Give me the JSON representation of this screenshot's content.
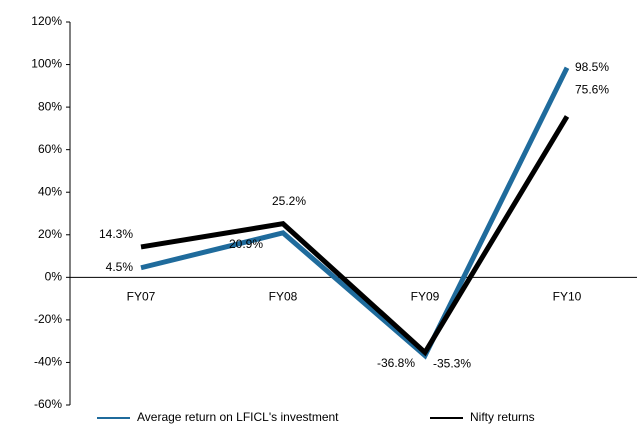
{
  "chart_data": {
    "type": "line",
    "categories": [
      "FY07",
      "FY08",
      "FY09",
      "FY10"
    ],
    "series": [
      {
        "name": "Average return on LFICL's investment",
        "color": "#1f6b9c",
        "values": [
          4.5,
          20.9,
          -36.8,
          98.5
        ],
        "value_labels": [
          "4.5%",
          "20.9%",
          "-36.8%",
          "98.5%"
        ]
      },
      {
        "name": "Nifty returns",
        "color": "#000000",
        "values": [
          14.3,
          25.2,
          -35.3,
          75.6
        ],
        "value_labels": [
          "14.3%",
          "25.2%",
          "-35.3%",
          "75.6%"
        ]
      }
    ],
    "ylim": [
      -60,
      120
    ],
    "yticks": [
      {
        "value": -60,
        "label": "-60%"
      },
      {
        "value": -40,
        "label": "-40%"
      },
      {
        "value": -20,
        "label": "-20%"
      },
      {
        "value": 0,
        "label": "0%"
      },
      {
        "value": 20,
        "label": "20%"
      },
      {
        "value": 40,
        "label": "40%"
      },
      {
        "value": 60,
        "label": "60%"
      },
      {
        "value": 80,
        "label": "80%"
      },
      {
        "value": 100,
        "label": "100%"
      },
      {
        "value": 120,
        "label": "120%"
      }
    ],
    "legend": "bottom"
  }
}
